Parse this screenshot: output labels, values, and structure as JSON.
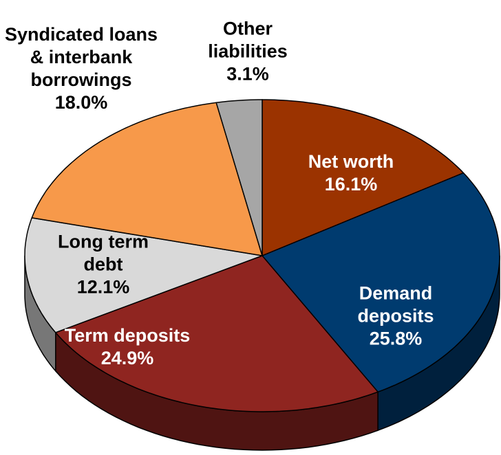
{
  "chart_data": {
    "type": "pie",
    "categories": [
      "Net worth",
      "Demand deposits",
      "Term deposits",
      "Long term debt",
      "Syndicated loans & interbank borrowings",
      "Other liabilities"
    ],
    "values": [
      16.1,
      25.8,
      24.9,
      12.1,
      18.0,
      3.1
    ],
    "value_labels": [
      "16.1%",
      "25.8%",
      "24.9%",
      "12.1%",
      "18.0%",
      "3.1%"
    ],
    "colors": [
      "#9b3300",
      "#003b6f",
      "#8f2520",
      "#d9d9d9",
      "#f7994a",
      "#a6a6a6"
    ]
  }
}
